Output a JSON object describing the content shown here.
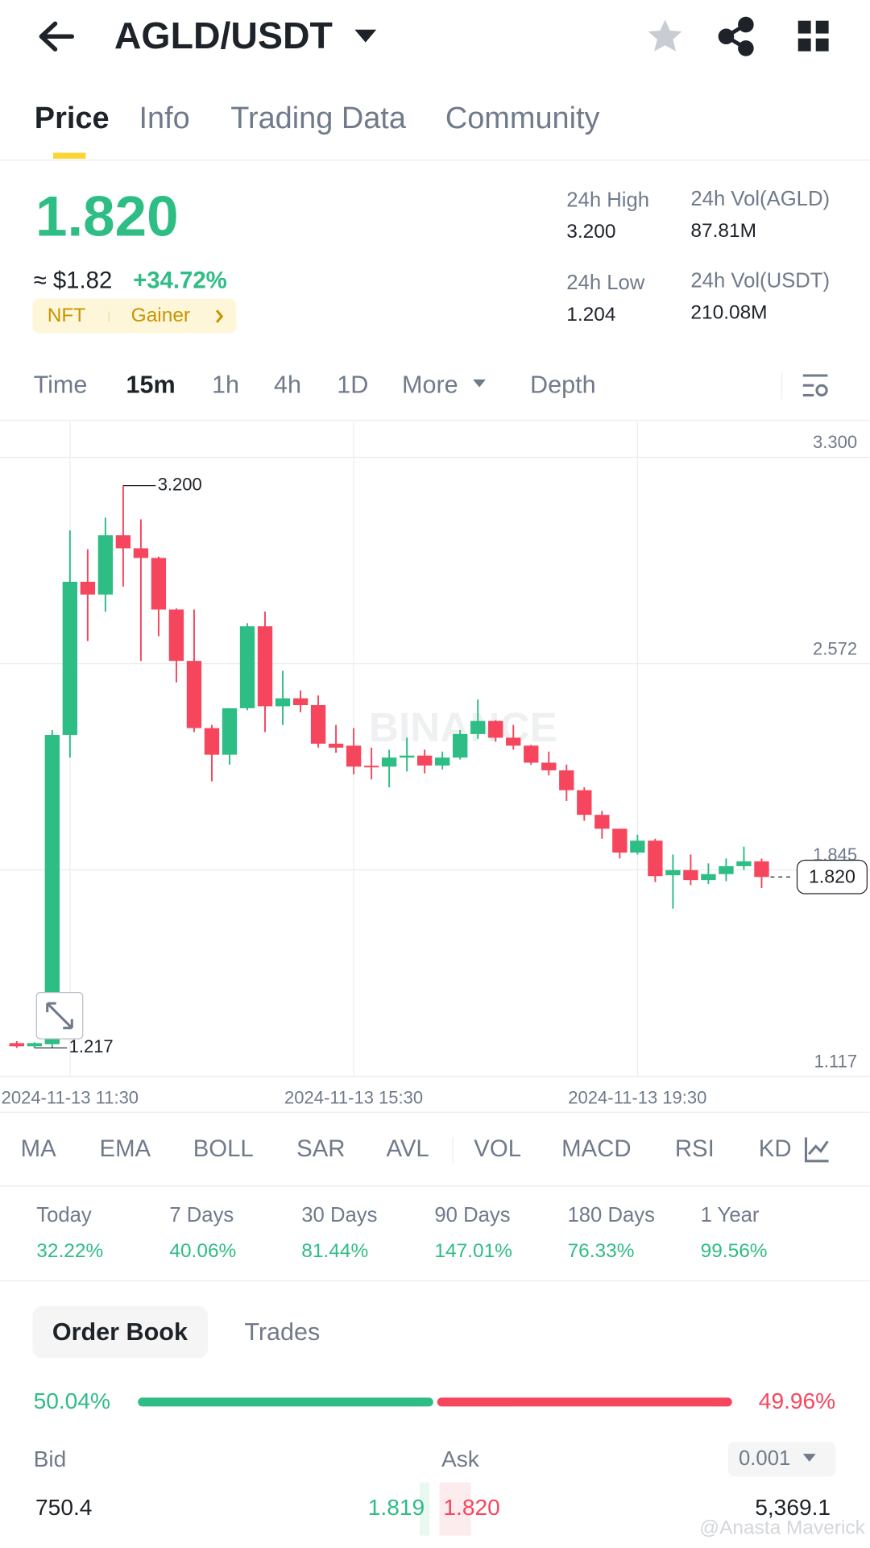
{
  "header": {
    "pair": "AGLD/USDT"
  },
  "tabs": [
    "Price",
    "Info",
    "Trading Data",
    "Community"
  ],
  "ticker": {
    "price": "1.820",
    "usd_price": "≈ $1.82",
    "change": "+34.72%",
    "tags": [
      "NFT",
      "Gainer"
    ],
    "stats": [
      {
        "label": "24h High",
        "value": "3.200"
      },
      {
        "label": "24h Vol(AGLD)",
        "value": "87.81M"
      },
      {
        "label": "24h Low",
        "value": "1.204"
      },
      {
        "label": "24h Vol(USDT)",
        "value": "210.08M"
      }
    ]
  },
  "intervals": [
    "Time",
    "15m",
    "1h",
    "4h",
    "1D",
    "More",
    "Depth"
  ],
  "chart_data": {
    "type": "candlestick",
    "watermark": "BINANCE",
    "up_color": "#2ebd85",
    "down_color": "#f6465d",
    "grid": true,
    "ylim": [
      1.117,
      3.425
    ],
    "yticks": [
      {
        "value": 3.3,
        "label": "3.300"
      },
      2.572,
      1.845,
      1.117
    ],
    "categories": [
      null,
      null,
      null,
      "2024-11-13 11:30",
      null,
      null,
      null,
      null,
      null,
      null,
      null,
      null,
      null,
      null,
      null,
      null,
      null,
      null,
      null,
      "2024-11-13 15:30",
      null,
      null,
      null,
      null,
      null,
      null,
      null,
      null,
      null,
      null,
      null,
      null,
      null,
      null,
      null,
      "2024-11-13 19:30",
      null,
      null,
      null,
      null,
      null,
      null,
      null
    ],
    "candles": [
      {
        "open": 1.234,
        "high": 1.241,
        "low": 1.217,
        "close": 1.223
      },
      {
        "open": 1.223,
        "high": 1.237,
        "low": 1.217,
        "close": 1.234
      },
      {
        "open": 1.23,
        "high": 2.338,
        "low": 1.217,
        "close": 2.321
      },
      {
        "open": 2.321,
        "high": 3.042,
        "low": 2.241,
        "close": 2.861
      },
      {
        "open": 2.861,
        "high": 2.976,
        "low": 2.652,
        "close": 2.816
      },
      {
        "open": 2.816,
        "high": 3.087,
        "low": 2.756,
        "close": 3.025
      },
      {
        "open": 3.025,
        "high": 3.2,
        "low": 2.844,
        "close": 2.979
      },
      {
        "open": 2.979,
        "high": 3.081,
        "low": 2.582,
        "close": 2.945
      },
      {
        "open": 2.945,
        "high": 2.95,
        "low": 2.669,
        "close": 2.763
      },
      {
        "open": 2.763,
        "high": 2.767,
        "low": 2.506,
        "close": 2.582
      },
      {
        "open": 2.582,
        "high": 2.763,
        "low": 2.331,
        "close": 2.345
      },
      {
        "open": 2.345,
        "high": 2.356,
        "low": 2.157,
        "close": 2.251
      },
      {
        "open": 2.251,
        "high": 2.415,
        "low": 2.216,
        "close": 2.415
      },
      {
        "open": 2.415,
        "high": 2.715,
        "low": 2.408,
        "close": 2.704
      },
      {
        "open": 2.704,
        "high": 2.756,
        "low": 2.331,
        "close": 2.422
      },
      {
        "open": 2.422,
        "high": 2.547,
        "low": 2.356,
        "close": 2.45
      },
      {
        "open": 2.45,
        "high": 2.478,
        "low": 2.401,
        "close": 2.426
      },
      {
        "open": 2.426,
        "high": 2.46,
        "low": 2.276,
        "close": 2.29
      },
      {
        "open": 2.29,
        "high": 2.356,
        "low": 2.258,
        "close": 2.276
      },
      {
        "open": 2.283,
        "high": 2.345,
        "low": 2.182,
        "close": 2.209
      },
      {
        "open": 2.212,
        "high": 2.276,
        "low": 2.164,
        "close": 2.209
      },
      {
        "open": 2.209,
        "high": 2.269,
        "low": 2.136,
        "close": 2.241
      },
      {
        "open": 2.241,
        "high": 2.311,
        "low": 2.192,
        "close": 2.248
      },
      {
        "open": 2.248,
        "high": 2.269,
        "low": 2.185,
        "close": 2.213
      },
      {
        "open": 2.213,
        "high": 2.262,
        "low": 2.199,
        "close": 2.241
      },
      {
        "open": 2.241,
        "high": 2.338,
        "low": 2.234,
        "close": 2.324
      },
      {
        "open": 2.324,
        "high": 2.446,
        "low": 2.307,
        "close": 2.37
      },
      {
        "open": 2.37,
        "high": 2.373,
        "low": 2.297,
        "close": 2.311
      },
      {
        "open": 2.311,
        "high": 2.356,
        "low": 2.269,
        "close": 2.283
      },
      {
        "open": 2.283,
        "high": 2.286,
        "low": 2.216,
        "close": 2.223
      },
      {
        "open": 2.223,
        "high": 2.262,
        "low": 2.178,
        "close": 2.196
      },
      {
        "open": 2.196,
        "high": 2.216,
        "low": 2.088,
        "close": 2.126
      },
      {
        "open": 2.126,
        "high": 2.136,
        "low": 2.018,
        "close": 2.039
      },
      {
        "open": 2.039,
        "high": 2.053,
        "low": 1.955,
        "close": 1.99
      },
      {
        "open": 1.99,
        "high": 1.99,
        "low": 1.885,
        "close": 1.906
      },
      {
        "open": 1.906,
        "high": 1.969,
        "low": 1.899,
        "close": 1.948
      },
      {
        "open": 1.948,
        "high": 1.955,
        "low": 1.802,
        "close": 1.823
      },
      {
        "open": 1.826,
        "high": 1.899,
        "low": 1.708,
        "close": 1.844
      },
      {
        "open": 1.844,
        "high": 1.899,
        "low": 1.791,
        "close": 1.809
      },
      {
        "open": 1.809,
        "high": 1.868,
        "low": 1.795,
        "close": 1.83
      },
      {
        "open": 1.83,
        "high": 1.885,
        "low": 1.805,
        "close": 1.858
      },
      {
        "open": 1.858,
        "high": 1.927,
        "low": 1.845,
        "close": 1.875
      },
      {
        "open": 1.875,
        "high": 1.885,
        "low": 1.781,
        "close": 1.82
      }
    ],
    "high_marker": {
      "value": 3.2,
      "label": "3.200"
    },
    "low_marker": 1.217,
    "last_price": {
      "value": 1.82,
      "label": "1.820"
    }
  },
  "indicators": [
    "MA",
    "EMA",
    "BOLL",
    "SAR",
    "AVL",
    "VOL",
    "MACD",
    "RSI",
    "KD"
  ],
  "performance": [
    {
      "label": "Today",
      "value": "32.22%"
    },
    {
      "label": "7 Days",
      "value": "40.06%"
    },
    {
      "label": "30 Days",
      "value": "81.44%"
    },
    {
      "label": "90 Days",
      "value": "147.01%"
    },
    {
      "label": "180 Days",
      "value": "76.33%"
    },
    {
      "label": "1 Year",
      "value": "99.56%"
    }
  ],
  "order_book": {
    "tabs": [
      "Order Book",
      "Trades"
    ],
    "bid_share": {
      "value": 50.04,
      "label": "50.04%"
    },
    "ask_share": {
      "value": 49.96,
      "label": "49.96%"
    },
    "bid_header": "Bid",
    "ask_header": "Ask",
    "precision": "0.001",
    "rows": [
      [
        "750.4",
        "1.819",
        "1.820",
        "5,369.1"
      ]
    ]
  },
  "watermark": "@Anasta Maverick"
}
